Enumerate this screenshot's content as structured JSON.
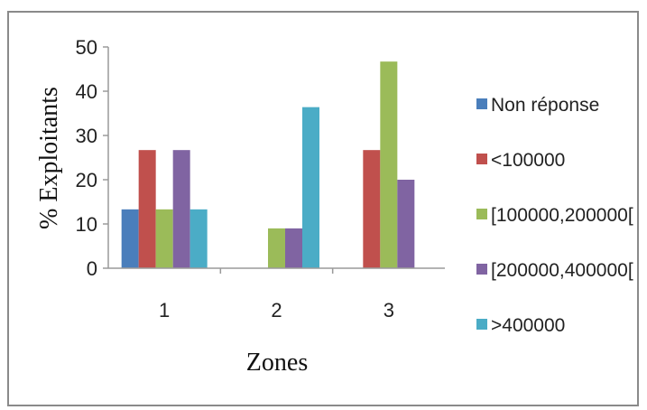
{
  "chart_data": {
    "type": "bar",
    "title": "",
    "xlabel": "Zones",
    "ylabel": "% Exploitants",
    "categories": [
      "1",
      "2",
      "3"
    ],
    "ylim": [
      0,
      50
    ],
    "yticks": [
      "0",
      "10",
      "20",
      "30",
      "40",
      "50"
    ],
    "grid": false,
    "legend_position": "right",
    "series": [
      {
        "name": "Non réponse",
        "color": "#4a7ebb",
        "values": [
          13.3,
          0,
          0
        ]
      },
      {
        "name": "<100000",
        "color": "#c0504d",
        "values": [
          26.7,
          0,
          26.7
        ]
      },
      {
        "name": "[100000,200000[",
        "color": "#9bbb59",
        "values": [
          13.3,
          9,
          46.7
        ]
      },
      {
        "name": "[200000,400000[",
        "color": "#8064a2",
        "values": [
          26.7,
          9,
          20
        ]
      },
      {
        "name": ">400000",
        "color": "#4bacc6",
        "values": [
          13.3,
          36.4,
          0
        ]
      }
    ]
  }
}
